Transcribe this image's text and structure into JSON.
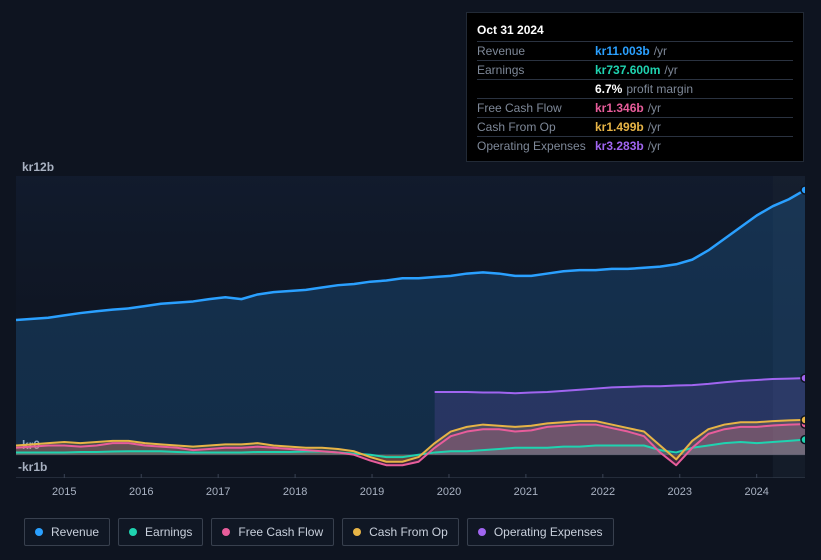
{
  "chart": {
    "type": "area-line",
    "background_color": "#0e1420",
    "grid_color": "#2a3240",
    "text_color": "#a9b2c2",
    "ylim": [
      -1,
      12
    ],
    "y_ticks": [
      {
        "v": 12,
        "label": "kr12b"
      },
      {
        "v": 0,
        "label": "kr0"
      },
      {
        "v": -1,
        "label": "-kr1b"
      }
    ],
    "x_years": [
      "2015",
      "2016",
      "2017",
      "2018",
      "2019",
      "2020",
      "2021",
      "2022",
      "2023",
      "2024"
    ],
    "future_start_index": 47,
    "tooltip": {
      "date": "Oct 31 2024",
      "rows": [
        {
          "label": "Revenue",
          "value": "kr11.003b",
          "unit": "/yr",
          "color": "#2aa0ff"
        },
        {
          "label": "Earnings",
          "value": "kr737.600m",
          "unit": "/yr",
          "color": "#1fd3b0"
        },
        {
          "label": "",
          "value": "6.7%",
          "unit": "profit margin",
          "color": "#ffffff"
        },
        {
          "label": "Free Cash Flow",
          "value": "kr1.346b",
          "unit": "/yr",
          "color": "#e85d9b"
        },
        {
          "label": "Cash From Op",
          "value": "kr1.499b",
          "unit": "/yr",
          "color": "#e7b446"
        },
        {
          "label": "Operating Expenses",
          "value": "kr3.283b",
          "unit": "/yr",
          "color": "#a065f0"
        }
      ]
    },
    "series": [
      {
        "name": "Revenue",
        "color": "#2aa0ff",
        "fill_opacity": 0.18,
        "stroke_width": 2.5,
        "data": [
          5.8,
          5.85,
          5.9,
          6.0,
          6.1,
          6.18,
          6.25,
          6.3,
          6.4,
          6.5,
          6.55,
          6.6,
          6.7,
          6.78,
          6.7,
          6.9,
          7.0,
          7.05,
          7.1,
          7.2,
          7.3,
          7.35,
          7.45,
          7.5,
          7.6,
          7.6,
          7.65,
          7.7,
          7.8,
          7.85,
          7.8,
          7.7,
          7.7,
          7.8,
          7.9,
          7.95,
          7.95,
          8.0,
          8.0,
          8.05,
          8.1,
          8.2,
          8.4,
          8.8,
          9.3,
          9.8,
          10.3,
          10.7,
          11.0,
          11.4
        ]
      },
      {
        "name": "Earnings",
        "color": "#1fd3b0",
        "fill_opacity": 0.22,
        "stroke_width": 2,
        "data": [
          0.1,
          0.1,
          0.1,
          0.1,
          0.12,
          0.12,
          0.14,
          0.15,
          0.15,
          0.15,
          0.12,
          0.1,
          0.1,
          0.1,
          0.1,
          0.12,
          0.12,
          0.12,
          0.14,
          0.14,
          0.1,
          0.05,
          0.0,
          -0.1,
          -0.1,
          0.0,
          0.1,
          0.15,
          0.15,
          0.2,
          0.25,
          0.3,
          0.3,
          0.3,
          0.35,
          0.35,
          0.4,
          0.4,
          0.4,
          0.4,
          0.2,
          0.1,
          0.3,
          0.4,
          0.5,
          0.55,
          0.5,
          0.55,
          0.6,
          0.65
        ]
      },
      {
        "name": "Free Cash Flow",
        "color": "#e85d9b",
        "fill_opacity": 0.22,
        "stroke_width": 2,
        "data": [
          0.3,
          0.35,
          0.4,
          0.4,
          0.35,
          0.4,
          0.5,
          0.5,
          0.4,
          0.35,
          0.3,
          0.2,
          0.25,
          0.3,
          0.3,
          0.35,
          0.3,
          0.25,
          0.2,
          0.15,
          0.1,
          0.0,
          -0.25,
          -0.45,
          -0.45,
          -0.3,
          0.3,
          0.8,
          1.0,
          1.1,
          1.1,
          1.0,
          1.05,
          1.2,
          1.25,
          1.3,
          1.3,
          1.15,
          1.0,
          0.8,
          0.1,
          -0.45,
          0.3,
          0.9,
          1.1,
          1.2,
          1.2,
          1.26,
          1.3,
          1.32
        ]
      },
      {
        "name": "Cash From Op",
        "color": "#e7b446",
        "fill_opacity": 0.22,
        "stroke_width": 2,
        "data": [
          0.4,
          0.45,
          0.5,
          0.55,
          0.5,
          0.55,
          0.6,
          0.6,
          0.5,
          0.45,
          0.4,
          0.35,
          0.4,
          0.45,
          0.45,
          0.5,
          0.4,
          0.35,
          0.3,
          0.3,
          0.25,
          0.15,
          -0.1,
          -0.3,
          -0.3,
          -0.1,
          0.5,
          1.0,
          1.2,
          1.3,
          1.25,
          1.2,
          1.25,
          1.35,
          1.4,
          1.45,
          1.45,
          1.3,
          1.15,
          1.0,
          0.4,
          -0.2,
          0.6,
          1.1,
          1.3,
          1.4,
          1.4,
          1.45,
          1.48,
          1.5
        ]
      },
      {
        "name": "Operating Expenses",
        "color": "#a065f0",
        "fill_opacity": 0.15,
        "stroke_width": 2,
        "data": [
          null,
          null,
          null,
          null,
          null,
          null,
          null,
          null,
          null,
          null,
          null,
          null,
          null,
          null,
          null,
          null,
          null,
          null,
          null,
          null,
          null,
          null,
          null,
          null,
          null,
          null,
          2.7,
          2.7,
          2.7,
          2.68,
          2.68,
          2.65,
          2.68,
          2.7,
          2.75,
          2.8,
          2.85,
          2.9,
          2.92,
          2.95,
          2.95,
          2.98,
          3.0,
          3.05,
          3.12,
          3.18,
          3.22,
          3.26,
          3.28,
          3.3
        ]
      }
    ],
    "legend": [
      {
        "label": "Revenue",
        "color": "#2aa0ff"
      },
      {
        "label": "Earnings",
        "color": "#1fd3b0"
      },
      {
        "label": "Free Cash Flow",
        "color": "#e85d9b"
      },
      {
        "label": "Cash From Op",
        "color": "#e7b446"
      },
      {
        "label": "Operating Expenses",
        "color": "#a065f0"
      }
    ]
  }
}
